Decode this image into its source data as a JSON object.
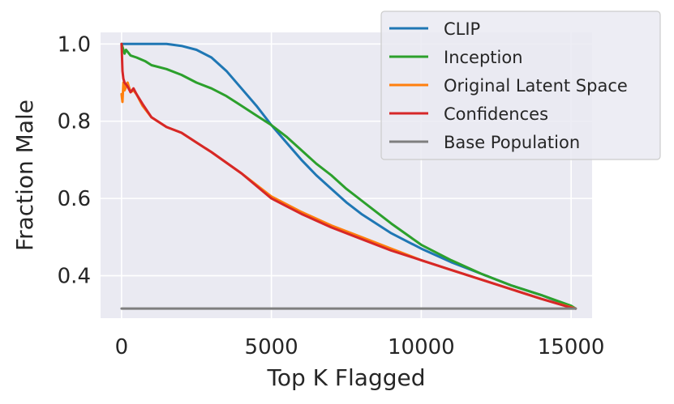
{
  "chart_data": {
    "type": "line",
    "xlabel": "Top K Flagged",
    "ylabel": "Fraction Male",
    "xlim": [
      -700,
      15700
    ],
    "ylim": [
      0.29,
      1.03
    ],
    "xticks": [
      0,
      5000,
      10000,
      15000
    ],
    "xtick_labels": [
      "0",
      "5000",
      "10000",
      "15000"
    ],
    "yticks": [
      0.4,
      0.6,
      0.8,
      1.0
    ],
    "ytick_labels": [
      "0.4",
      "0.6",
      "0.8",
      "1.0"
    ],
    "grid": true,
    "background": "#eaeaf2",
    "legend_position": "top-right",
    "series": [
      {
        "name": "CLIP",
        "color": "#1f77b4",
        "x": [
          1,
          500,
          1000,
          1500,
          2000,
          2500,
          3000,
          3500,
          4000,
          4500,
          5000,
          5500,
          6000,
          6500,
          7000,
          7500,
          8000,
          9000,
          10000,
          11000,
          12000,
          13000,
          14000,
          15000,
          15150
        ],
        "y": [
          1.0,
          1.0,
          1.0,
          1.0,
          0.995,
          0.985,
          0.965,
          0.93,
          0.885,
          0.84,
          0.79,
          0.745,
          0.7,
          0.66,
          0.625,
          0.59,
          0.56,
          0.51,
          0.47,
          0.435,
          0.405,
          0.375,
          0.35,
          0.32,
          0.315
        ]
      },
      {
        "name": "Inception",
        "color": "#2ca02c",
        "x": [
          1,
          100,
          150,
          300,
          500,
          800,
          1000,
          1500,
          2000,
          2500,
          3000,
          3500,
          4000,
          4500,
          5000,
          5500,
          6000,
          6500,
          7000,
          7500,
          8000,
          9000,
          10000,
          11000,
          12000,
          13000,
          14000,
          15000,
          15150
        ],
        "y": [
          1.0,
          0.975,
          0.985,
          0.97,
          0.965,
          0.955,
          0.945,
          0.935,
          0.92,
          0.9,
          0.885,
          0.865,
          0.84,
          0.815,
          0.79,
          0.76,
          0.725,
          0.69,
          0.66,
          0.625,
          0.595,
          0.535,
          0.48,
          0.44,
          0.405,
          0.375,
          0.35,
          0.322,
          0.315
        ]
      },
      {
        "name": "Original Latent Space",
        "color": "#ff7f0e",
        "x": [
          1,
          30,
          60,
          100,
          200,
          300,
          400,
          500,
          700,
          1000,
          1500,
          2000,
          2500,
          3000,
          4000,
          5000,
          6000,
          7000,
          8000,
          9000,
          10000,
          11000,
          12000,
          13000,
          14000,
          15000,
          15150
        ],
        "y": [
          0.87,
          0.85,
          0.9,
          0.88,
          0.9,
          0.875,
          0.88,
          0.87,
          0.84,
          0.81,
          0.785,
          0.77,
          0.745,
          0.72,
          0.665,
          0.605,
          0.565,
          0.53,
          0.5,
          0.47,
          0.44,
          0.415,
          0.39,
          0.365,
          0.34,
          0.318,
          0.315
        ]
      },
      {
        "name": "Confidences",
        "color": "#d62728",
        "x": [
          1,
          30,
          60,
          100,
          200,
          300,
          400,
          500,
          700,
          1000,
          1500,
          2000,
          2500,
          3000,
          4000,
          5000,
          6000,
          7000,
          8000,
          9000,
          10000,
          11000,
          12000,
          13000,
          14000,
          15000,
          15150
        ],
        "y": [
          1.0,
          0.93,
          0.91,
          0.9,
          0.89,
          0.875,
          0.885,
          0.87,
          0.845,
          0.81,
          0.785,
          0.77,
          0.745,
          0.72,
          0.665,
          0.6,
          0.56,
          0.525,
          0.495,
          0.465,
          0.44,
          0.415,
          0.39,
          0.365,
          0.34,
          0.317,
          0.315
        ]
      },
      {
        "name": "Base Population",
        "color": "#7f7f7f",
        "x": [
          0,
          15150
        ],
        "y": [
          0.315,
          0.315
        ]
      }
    ]
  }
}
